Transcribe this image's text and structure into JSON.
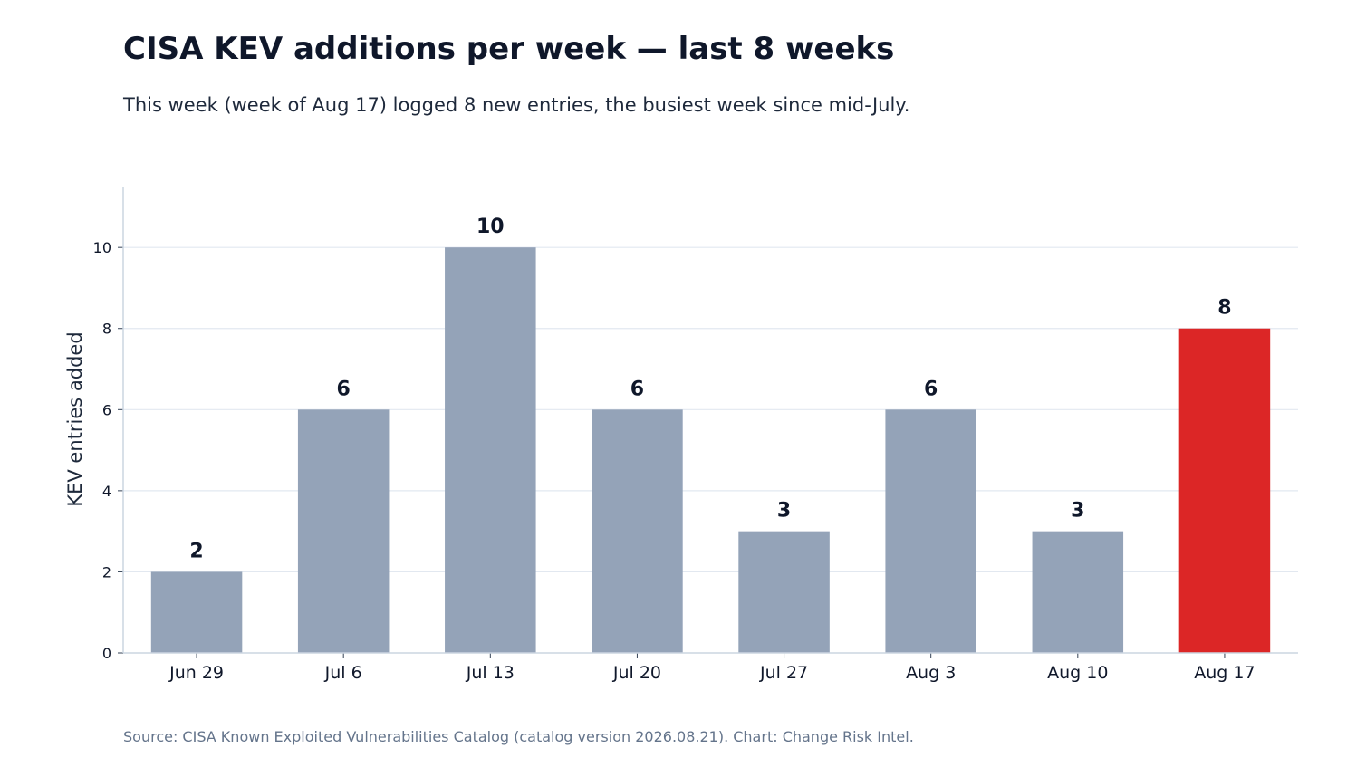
{
  "chart_data": {
    "type": "bar",
    "title": "CISA KEV additions per week — last 8 weeks",
    "subtitle": "This week (week of Aug 17) logged 8 new entries, the busiest week since mid-July.",
    "source": "Source: CISA Known Exploited Vulnerabilities Catalog (catalog version 2026.08.21). Chart: Change Risk Intel.",
    "xlabel": "",
    "ylabel": "KEV entries added",
    "categories": [
      "Jun 29",
      "Jul 6",
      "Jul 13",
      "Jul 20",
      "Jul 27",
      "Aug 3",
      "Aug 10",
      "Aug 17"
    ],
    "values": [
      2,
      6,
      10,
      6,
      3,
      6,
      3,
      8
    ],
    "ylim": [
      0,
      11.5
    ],
    "yticks": [
      0,
      2,
      4,
      6,
      8,
      10
    ],
    "grid": true,
    "highlight_index": 7,
    "colors": {
      "bar": "#94a3b8",
      "highlight": "#dc2626",
      "grid": "#e2e8f0",
      "axis": "#cbd5e1"
    }
  }
}
